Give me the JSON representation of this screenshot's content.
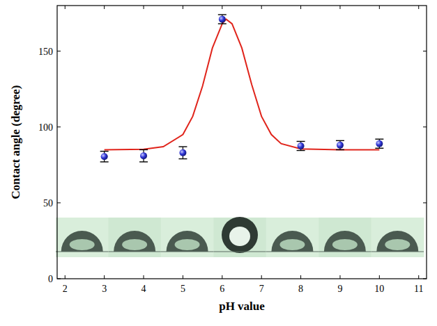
{
  "chart_data": {
    "type": "scatter",
    "x_label": "pH value",
    "y_label": "Contact angle (degree)",
    "xlim": [
      1.8,
      11.2
    ],
    "xticks": [
      2,
      3,
      4,
      5,
      6,
      7,
      8,
      9,
      10,
      11
    ],
    "ylim": [
      0,
      180
    ],
    "yticks": [
      0,
      50,
      100,
      150
    ],
    "grid": false,
    "series": [
      {
        "type": "scatter",
        "color": "#2f35d6",
        "marker": "circle",
        "x": [
          3,
          4,
          5,
          6,
          8,
          9,
          10
        ],
        "values": [
          80.5,
          81,
          83,
          171,
          87.5,
          88,
          89
        ],
        "errors": [
          3.5,
          4,
          4,
          3,
          3,
          3,
          3
        ]
      },
      {
        "type": "line",
        "color": "#e0241b",
        "line_style": "solid",
        "x": [
          3,
          4,
          4.5,
          5,
          5.25,
          5.5,
          5.75,
          6,
          6.1,
          6.25,
          6.5,
          6.75,
          7,
          7.25,
          7.5,
          8,
          9,
          10
        ],
        "values": [
          85,
          85.3,
          87,
          95,
          107,
          127,
          152,
          168,
          171,
          168,
          152,
          128,
          107,
          95,
          89,
          85.5,
          85,
          85
        ]
      }
    ]
  }
}
